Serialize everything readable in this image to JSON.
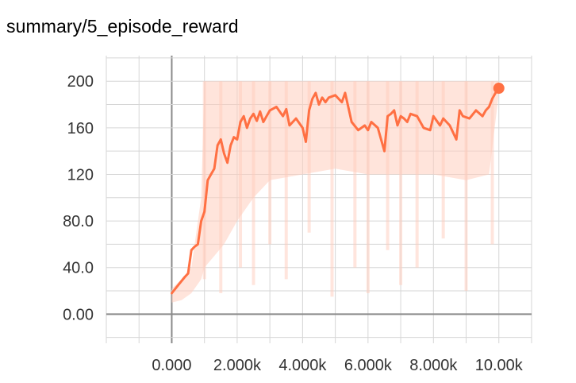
{
  "title": "summary/5_episode_reward",
  "colors": {
    "smoothed": "#ff7043",
    "raw": "#ffcdbd",
    "grid": "#d6d6d6",
    "axis": "#8a8a8a"
  },
  "chart_data": {
    "type": "line",
    "title": "summary/5_episode_reward",
    "xlabel": "",
    "ylabel": "",
    "xlim": [
      -2000,
      11000
    ],
    "ylim": [
      -25,
      222
    ],
    "x_ticks": [
      0,
      2000,
      4000,
      6000,
      8000,
      10000
    ],
    "x_tick_labels": [
      "0.000",
      "2.000k",
      "4.000k",
      "6.000k",
      "8.000k",
      "10.00k"
    ],
    "y_ticks": [
      0,
      40,
      80,
      120,
      160,
      200
    ],
    "y_tick_labels": [
      "0.00",
      "40.0",
      "80.0",
      "120",
      "160",
      "200"
    ],
    "grid": true,
    "legend": "none",
    "series": [
      {
        "role": "smoothed",
        "x": [
          0,
          200,
          400,
          500,
          600,
          700,
          800,
          900,
          1000,
          1100,
          1200,
          1300,
          1400,
          1500,
          1600,
          1700,
          1800,
          1900,
          2000,
          2100,
          2200,
          2300,
          2400,
          2500,
          2600,
          2700,
          2800,
          2900,
          3000,
          3200,
          3400,
          3500,
          3600,
          3800,
          4000,
          4100,
          4200,
          4300,
          4400,
          4500,
          4600,
          4700,
          4800,
          5000,
          5200,
          5300,
          5500,
          5700,
          5900,
          6000,
          6100,
          6300,
          6500,
          6600,
          6700,
          6800,
          6900,
          7000,
          7100,
          7200,
          7300,
          7500,
          7700,
          7900,
          8000,
          8200,
          8300,
          8500,
          8700,
          8800,
          8900,
          9100,
          9300,
          9500,
          9600,
          9700,
          9800,
          9900,
          10000
        ],
        "y": [
          18,
          25,
          32,
          35,
          55,
          58,
          60,
          80,
          88,
          115,
          120,
          125,
          145,
          150,
          138,
          130,
          145,
          152,
          150,
          165,
          170,
          160,
          168,
          172,
          166,
          174,
          165,
          170,
          175,
          178,
          170,
          176,
          162,
          168,
          160,
          148,
          175,
          185,
          190,
          180,
          186,
          182,
          186,
          188,
          182,
          190,
          165,
          158,
          162,
          158,
          165,
          160,
          140,
          170,
          172,
          175,
          162,
          170,
          168,
          165,
          172,
          170,
          160,
          158,
          170,
          162,
          168,
          162,
          150,
          175,
          170,
          168,
          175,
          170,
          175,
          178,
          185,
          190,
          194
        ]
      }
    ],
    "raw_band": {
      "role": "raw",
      "x": [
        0,
        300,
        600,
        900,
        1000,
        1300,
        1600,
        2000,
        2500,
        3000,
        4000,
        5000,
        6000,
        7000,
        8000,
        9000,
        9700,
        10000
      ],
      "y_low": [
        10,
        12,
        18,
        30,
        40,
        50,
        60,
        80,
        100,
        115,
        120,
        125,
        120,
        120,
        120,
        115,
        120,
        190
      ],
      "y_high": [
        22,
        30,
        40,
        100,
        200,
        200,
        200,
        200,
        200,
        200,
        200,
        200,
        200,
        200,
        200,
        200,
        200,
        200
      ]
    },
    "end_marker": {
      "x": 10000,
      "y": 194
    }
  }
}
